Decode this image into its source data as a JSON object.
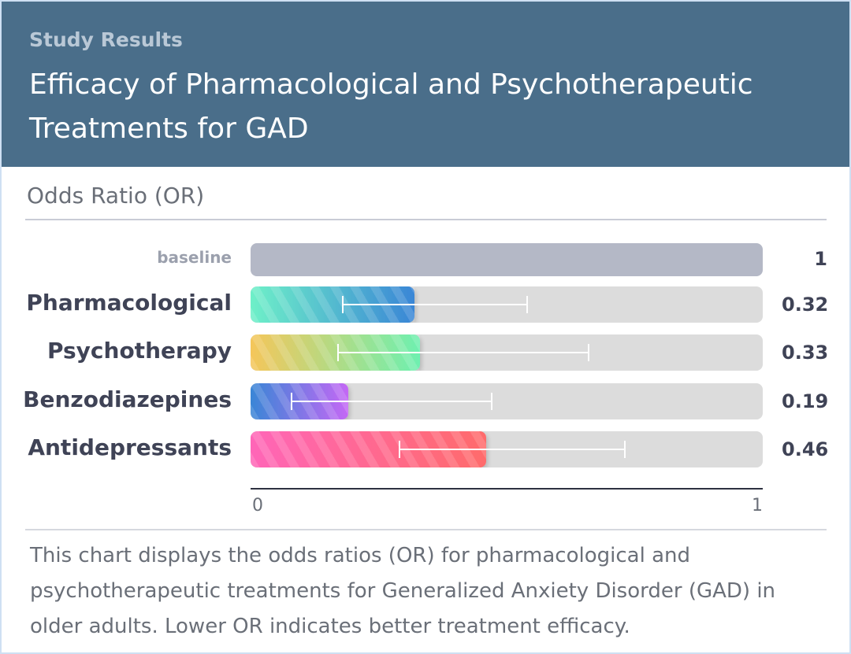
{
  "header": {
    "eyebrow": "Study Results",
    "title": "Efficacy of Pharmacological and Psychotherapeutic Treatments for GAD"
  },
  "chart_data": {
    "type": "bar",
    "orientation": "horizontal",
    "subtitle": "Odds Ratio (OR)",
    "baseline": {
      "label": "baseline",
      "value": 1,
      "value_label": "1",
      "color": "#b4b8c6"
    },
    "categories": [
      "Pharmacological",
      "Psychotherapy",
      "Benzodiazepines",
      "Antidepressants"
    ],
    "values": [
      0.32,
      0.33,
      0.19,
      0.46
    ],
    "value_labels": [
      "0.32",
      "0.33",
      "0.19",
      "0.46"
    ],
    "ci": [
      [
        0.18,
        0.54
      ],
      [
        0.17,
        0.66
      ],
      [
        0.08,
        0.47
      ],
      [
        0.29,
        0.73
      ]
    ],
    "colors": [
      [
        "#6ef0c8",
        "#3a86d6"
      ],
      [
        "#f5c65a",
        "#6ef0b0"
      ],
      [
        "#3a86d6",
        "#c468f5"
      ],
      [
        "#ff66b8",
        "#ff6b6b"
      ]
    ],
    "xlim": [
      0,
      1
    ],
    "ticks": [
      "0",
      "1"
    ],
    "grid": false
  },
  "description": "This chart displays the odds ratios (OR) for pharmacological and psychotherapeutic treatments for Generalized Anxiety Disorder (GAD) in older adults. Lower OR indicates better treatment efficacy."
}
